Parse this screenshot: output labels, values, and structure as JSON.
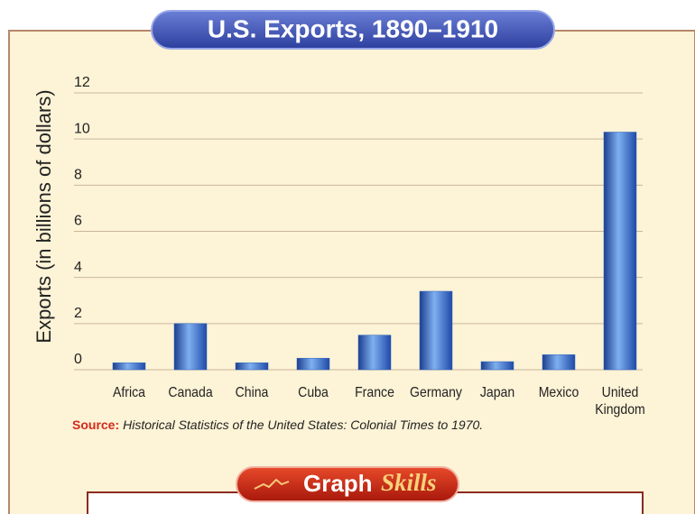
{
  "chart_data": {
    "type": "bar",
    "title": "U.S. Exports, 1890–1910",
    "y_label": "Exports (in billions of dollars)",
    "categories": [
      "Africa",
      "Canada",
      "China",
      "Cuba",
      "France",
      "Germany",
      "Japan",
      "Mexico",
      "United Kingdom"
    ],
    "values": [
      0.3,
      2.0,
      0.3,
      0.5,
      1.5,
      3.4,
      0.35,
      0.65,
      10.3
    ],
    "color": "#2a5fbf",
    "ylim": [
      0,
      12
    ],
    "yticks": [
      0,
      2,
      4,
      6,
      8,
      10,
      12
    ],
    "grid": true,
    "source_label": "Source:",
    "source_text": "Historical Statistics of the United States: Colonial Times to 1970."
  },
  "banner": {
    "word1": "Graph",
    "word2": "Skills"
  }
}
